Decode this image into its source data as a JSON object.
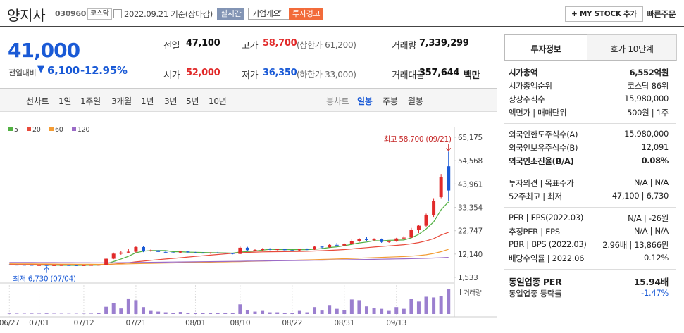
{
  "header": {
    "name": "양지사",
    "code": "030960",
    "market": "코스닥",
    "date": "2022.09.21 기준(장마감)",
    "realtime": "실시간",
    "company": "기업개요",
    "warning": "투자경고",
    "mystock": "+ MY STOCK 추가",
    "quick_order": "빠른주문"
  },
  "price": {
    "current": "41,000",
    "change_label": "전일대비",
    "change": "6,100",
    "rate": "-12.95%"
  },
  "summary": {
    "rows": [
      [
        {
          "label": "전일",
          "value": "47,100",
          "color": "#111111"
        },
        {
          "label": "고가",
          "value": "58,700",
          "note": "(상한가 61,200)",
          "color": "#e12a2a"
        },
        {
          "label": "거래량",
          "value": "7,339,299",
          "color": "#111111"
        }
      ],
      [
        {
          "label": "시가",
          "value": "52,000",
          "color": "#e12a2a"
        },
        {
          "label": "저가",
          "value": "36,350",
          "note": "(하한가 33,000)",
          "color": "#1a5ad6"
        },
        {
          "label": "거래대금",
          "value": "357,644",
          "unit": "백만",
          "color": "#111111"
        }
      ]
    ]
  },
  "periods": {
    "line_label": "선차트",
    "line": [
      "1일",
      "1주일",
      "3개월",
      "1년",
      "3년",
      "5년",
      "10년"
    ],
    "candle_label": "봉차트",
    "candle": [
      "일봉",
      "주봉",
      "월봉"
    ]
  },
  "tabs": [
    "투자정보",
    "호가 10단계"
  ],
  "info": {
    "groups": [
      [
        [
          "시가총액",
          "6,552억원"
        ],
        [
          "시가총액순위",
          "코스닥 86위"
        ],
        [
          "상장주식수",
          "15,980,000"
        ],
        [
          "액면가 | 매매단위",
          "500원 | 1주"
        ]
      ],
      [
        [
          "외국인한도주식수(A)",
          "15,980,000"
        ],
        [
          "외국인보유주식수(B)",
          "12,091"
        ],
        [
          "외국인소진율(B/A)",
          "0.08%"
        ]
      ],
      [
        [
          "투자의견 | 목표주가",
          "N/A | N/A"
        ],
        [
          "52주최고 | 최저",
          "47,100 | 6,730"
        ]
      ],
      [
        [
          "PER | EPS(2022.03)",
          "N/A | -26원"
        ],
        [
          "추정PER | EPS",
          "N/A | N/A"
        ],
        [
          "PBR | BPS (2022.03)",
          "2.96배 | 13,866원"
        ],
        [
          "배당수익률 | 2022.06",
          "0.12%"
        ]
      ],
      [
        [
          "동일업종 PER",
          "15.94배"
        ],
        [
          "동일업종 등락률",
          "-1.47%"
        ]
      ]
    ]
  },
  "chart_data": {
    "type": "candlestick",
    "categories": [
      "06/27",
      null,
      null,
      null,
      "07/01",
      null,
      null,
      null,
      null,
      null,
      "07/12",
      null,
      null,
      null,
      null,
      null,
      null,
      "07/21",
      null,
      null,
      null,
      null,
      null,
      null,
      null,
      "08/01",
      null,
      null,
      null,
      null,
      null,
      "08/10",
      null,
      null,
      null,
      null,
      null,
      null,
      "08/22",
      null,
      null,
      null,
      null,
      null,
      null,
      "08/31",
      null,
      null,
      null,
      null,
      null,
      null,
      "09/13",
      null,
      null,
      null,
      null,
      null,
      null,
      null
    ],
    "open": [
      7300,
      7250,
      7200,
      7150,
      7000,
      7050,
      6900,
      7000,
      7050,
      7000,
      6950,
      7000,
      7100,
      7200,
      10000,
      12300,
      12800,
      13200,
      15300,
      13500,
      13800,
      13100,
      12900,
      12800,
      13300,
      12900,
      12700,
      12600,
      12800,
      12700,
      12500,
      12200,
      15000,
      13900,
      14000,
      14500,
      14100,
      14300,
      13900,
      13800,
      14400,
      14100,
      15500,
      15200,
      16300,
      16000,
      16600,
      18000,
      18900,
      18500,
      19000,
      17600,
      17900,
      19200,
      19600,
      23000,
      25000,
      29800,
      38000,
      52000
    ],
    "high": [
      7400,
      7350,
      7300,
      7250,
      7150,
      7100,
      7050,
      7100,
      7150,
      7100,
      7050,
      7150,
      7300,
      10200,
      12800,
      13500,
      14500,
      15800,
      15600,
      14200,
      14000,
      13400,
      13200,
      13600,
      13500,
      13100,
      13000,
      12900,
      13100,
      12900,
      12700,
      15500,
      15400,
      14400,
      14800,
      14800,
      14600,
      14500,
      14200,
      14600,
      14700,
      15900,
      15800,
      16800,
      17200,
      17000,
      18800,
      19400,
      19800,
      19300,
      19200,
      18300,
      19500,
      20300,
      24000,
      25500,
      30500,
      37500,
      48500,
      58700
    ],
    "low": [
      7150,
      7100,
      7050,
      6950,
      6850,
      6730,
      6800,
      6900,
      6950,
      6900,
      6850,
      6900,
      7000,
      7150,
      9800,
      11800,
      12500,
      12800,
      13000,
      13200,
      13000,
      12700,
      12600,
      12700,
      12800,
      12500,
      12400,
      12300,
      12500,
      12300,
      12000,
      12100,
      13600,
      13500,
      13700,
      13900,
      13800,
      13700,
      13400,
      13600,
      13900,
      14000,
      14800,
      15000,
      15800,
      15600,
      16400,
      17500,
      18000,
      17900,
      17200,
      17200,
      17700,
      18600,
      19400,
      21600,
      24500,
      29000,
      37500,
      36350
    ],
    "close": [
      7250,
      7200,
      7150,
      7000,
      7050,
      6900,
      7000,
      7050,
      7000,
      6950,
      7000,
      7100,
      7200,
      10000,
      12300,
      12800,
      13200,
      15300,
      13500,
      13800,
      13100,
      12900,
      12800,
      13300,
      12900,
      12700,
      12600,
      12800,
      12700,
      12500,
      12200,
      15000,
      13900,
      14000,
      14500,
      14100,
      14300,
      13900,
      13800,
      14400,
      14100,
      15500,
      15200,
      16300,
      16000,
      16600,
      18000,
      18900,
      18500,
      19000,
      17600,
      17900,
      19200,
      19600,
      23000,
      25000,
      29800,
      36200,
      47100,
      41000
    ],
    "up_color": "#e12a2a",
    "down_color": "#1a5ad6",
    "ma": [
      {
        "name": "5",
        "color": "#52b043",
        "values": [
          7250,
          7230,
          7200,
          7150,
          7130,
          7060,
          7020,
          7000,
          7000,
          6980,
          7000,
          7020,
          7050,
          7660,
          8720,
          9880,
          11100,
          12720,
          13420,
          13720,
          13740,
          13720,
          13220,
          13180,
          13000,
          12940,
          12860,
          12780,
          12740,
          12660,
          12560,
          13040,
          13280,
          13520,
          13920,
          14300,
          14160,
          14160,
          14120,
          14140,
          14100,
          14340,
          14600,
          15100,
          15420,
          15920,
          16540,
          17160,
          17600,
          18200,
          18120,
          18380,
          18440,
          18500,
          19460,
          21060,
          23520,
          26720,
          32220,
          35820
        ]
      },
      {
        "name": "20",
        "color": "#e84a3b",
        "values": [
          7400,
          7380,
          7360,
          7340,
          7320,
          7300,
          7280,
          7260,
          7240,
          7220,
          7200,
          7180,
          7170,
          7320,
          7580,
          7870,
          8180,
          8600,
          8920,
          9260,
          9580,
          9870,
          10160,
          10470,
          10760,
          11050,
          11340,
          11630,
          11920,
          12200,
          12460,
          12700,
          12880,
          13000,
          13110,
          13180,
          13220,
          13250,
          13280,
          13330,
          13400,
          13510,
          13640,
          13800,
          13960,
          14170,
          14440,
          14740,
          15030,
          15330,
          15600,
          15840,
          16100,
          16380,
          16790,
          17330,
          18100,
          19160,
          20770,
          22000
        ]
      },
      {
        "name": "60",
        "color": "#f39c34",
        "values": [
          7700,
          7680,
          7660,
          7640,
          7620,
          7600,
          7580,
          7560,
          7540,
          7520,
          7500,
          7480,
          7460,
          7500,
          7560,
          7620,
          7680,
          7760,
          7830,
          7900,
          7970,
          8040,
          8100,
          8170,
          8240,
          8300,
          8370,
          8430,
          8500,
          8560,
          8620,
          8700,
          8790,
          8880,
          8960,
          9050,
          9140,
          9230,
          9310,
          9400,
          9490,
          9590,
          9690,
          9800,
          9900,
          10010,
          10130,
          10250,
          10380,
          10500,
          10620,
          10740,
          10860,
          10990,
          11190,
          11440,
          11800,
          12400,
          13200,
          14300
        ]
      },
      {
        "name": "120",
        "color": "#9b6bc7",
        "values": [
          8300,
          8290,
          8280,
          8270,
          8260,
          8250,
          8240,
          8230,
          8220,
          8200,
          8180,
          8160,
          8140,
          8160,
          8190,
          8220,
          8250,
          8290,
          8330,
          8370,
          8410,
          8450,
          8490,
          8530,
          8570,
          8610,
          8650,
          8690,
          8730,
          8770,
          8810,
          8860,
          8910,
          8960,
          9000,
          9040,
          9080,
          9120,
          9160,
          9200,
          9240,
          9290,
          9340,
          9390,
          9440,
          9490,
          9550,
          9610,
          9670,
          9730,
          9790,
          9850,
          9910,
          9970,
          10040,
          10120,
          10210,
          10320,
          10460,
          10600
        ]
      }
    ],
    "volume": [
      150000,
      120000,
      100000,
      130000,
      110000,
      160000,
      100000,
      90000,
      80000,
      90000,
      100000,
      120000,
      200000,
      2100000,
      3200000,
      1600000,
      4500000,
      4000000,
      2000000,
      900000,
      700000,
      500000,
      400000,
      600000,
      400000,
      300000,
      300000,
      350000,
      300000,
      250000,
      300000,
      2800000,
      1200000,
      700000,
      900000,
      500000,
      500000,
      400000,
      400000,
      900000,
      500000,
      2000000,
      1000000,
      2600000,
      1500000,
      1200000,
      4200000,
      4000000,
      2200000,
      1800000,
      1500000,
      900000,
      2000000,
      1500000,
      4300000,
      3600000,
      5000000,
      4800000,
      5200000,
      7339299
    ],
    "volume_label": "거래량",
    "volume_color": "#9b7fcf",
    "ylim": [
      1533,
      65175
    ],
    "yticks": [
      {
        "value": 1533,
        "label": "1,533"
      },
      {
        "value": 12140,
        "label": "12,140"
      },
      {
        "value": 22747,
        "label": "22,747"
      },
      {
        "value": 33354,
        "label": "33,354"
      },
      {
        "value": 43961,
        "label": "43,961"
      },
      {
        "value": 54568,
        "label": "54,568"
      },
      {
        "value": 65175,
        "label": "65,175"
      }
    ],
    "annotations": [
      {
        "text": "최고 58,700 (09/21)",
        "index": 59,
        "value": 58700,
        "color": "#c62828"
      },
      {
        "text": "최저 6,730 (07/04)",
        "index": 5,
        "value": 6730,
        "color": "#1a5ad6"
      }
    ]
  }
}
